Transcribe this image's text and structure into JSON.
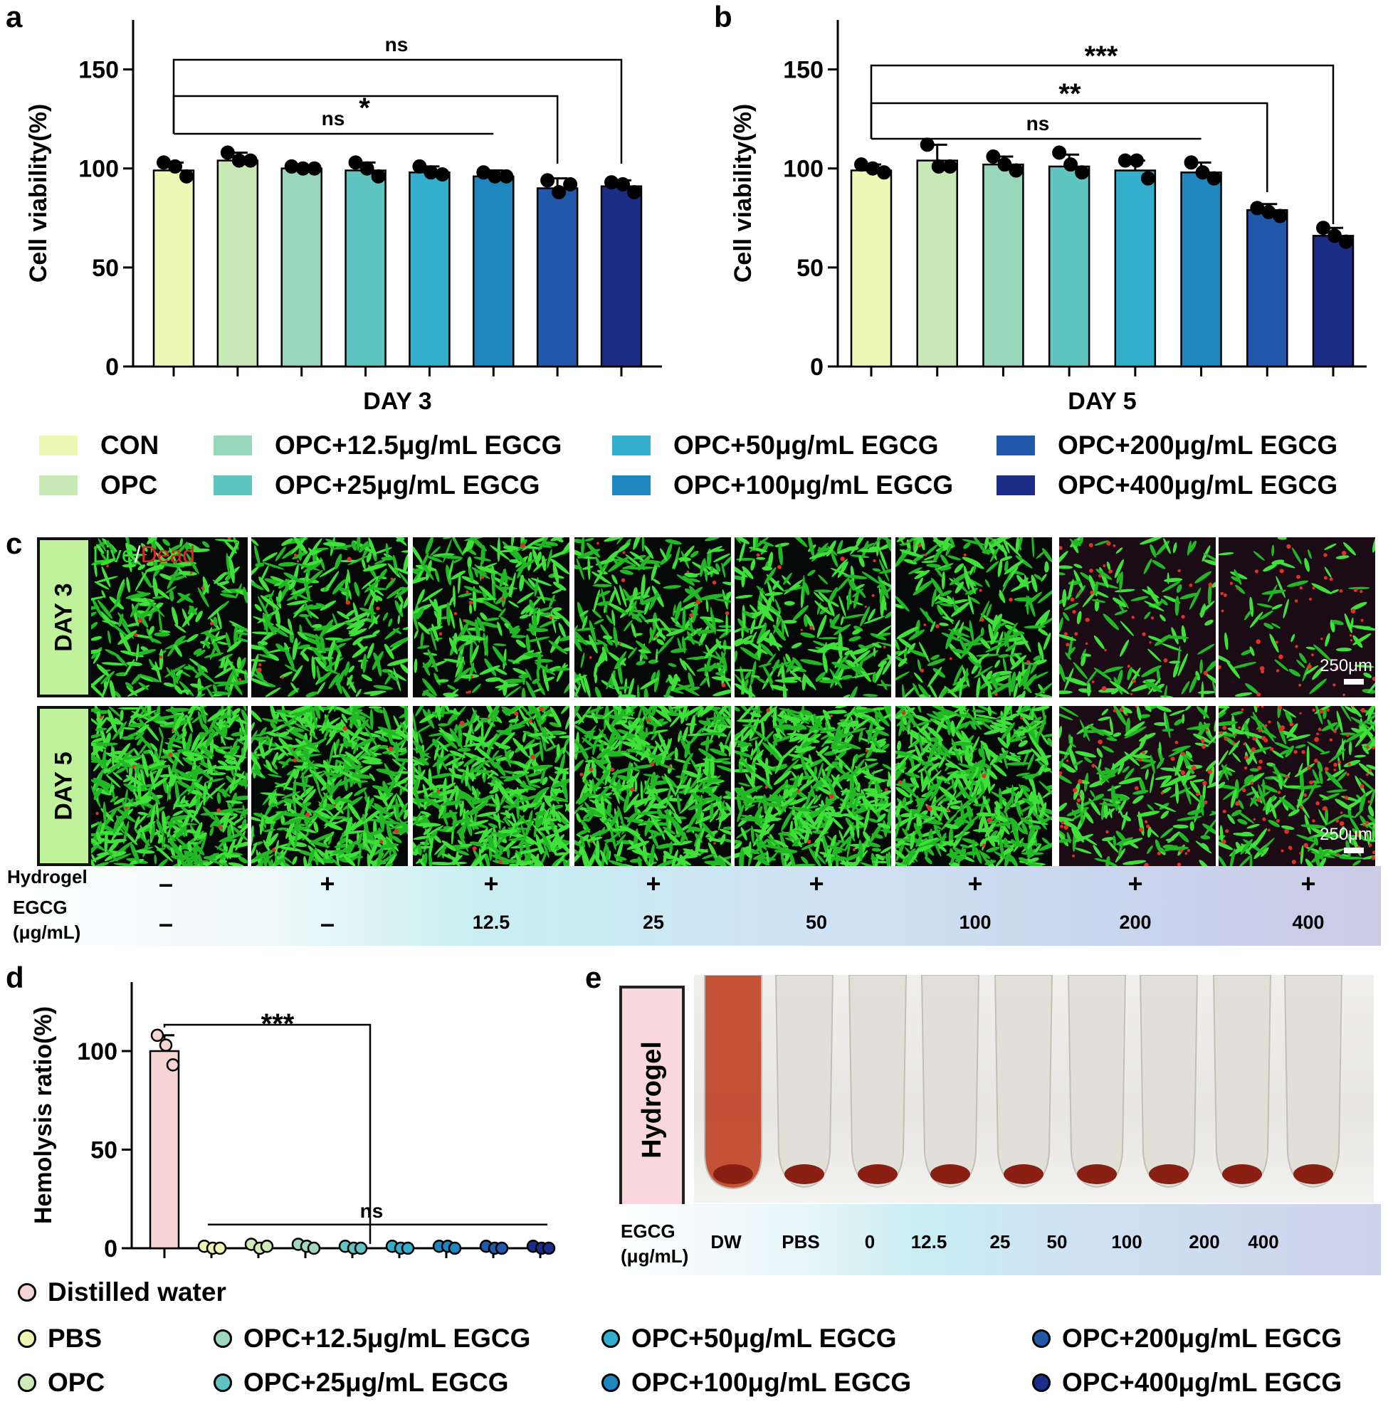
{
  "panels": {
    "a": "a",
    "b": "b",
    "c": "c",
    "d": "d",
    "e": "e"
  },
  "groups": [
    "CON",
    "OPC",
    "OPC+12.5μg/mL EGCG",
    "OPC+25μg/mL EGCG",
    "OPC+50μg/mL EGCG",
    "OPC+100μg/mL EGCG",
    "OPC+200μg/mL EGCG",
    "OPC+400μg/mL EGCG"
  ],
  "colors": [
    "#ecf8b4",
    "#c6e9b5",
    "#99d7bb",
    "#60c4c1",
    "#33aecc",
    "#1f86c0",
    "#2158aa",
    "#1b2d86"
  ],
  "chart_data": [
    {
      "type": "bar",
      "panel": "a",
      "xlabel": "DAY 3",
      "ylabel": "Cell viability(%)",
      "ylim": [
        0,
        175
      ],
      "yticks": [
        0,
        50,
        100,
        150
      ],
      "values": [
        99,
        104,
        100,
        99,
        98,
        96,
        90,
        91
      ],
      "errors": [
        4,
        4,
        1,
        4,
        3,
        3,
        5,
        3
      ],
      "points": [
        [
          103,
          101,
          96
        ],
        [
          108,
          104,
          104
        ],
        [
          101,
          100,
          100
        ],
        [
          103,
          100,
          96
        ],
        [
          101,
          98,
          97
        ],
        [
          98,
          96,
          96
        ],
        [
          94,
          88,
          92
        ],
        [
          93,
          92,
          88
        ]
      ],
      "significance": [
        {
          "label": "ns",
          "from": 0,
          "to": 7
        },
        {
          "label": "*",
          "from": 0,
          "to": 6
        },
        {
          "label": "ns",
          "from": 0,
          "to": 5
        }
      ]
    },
    {
      "type": "bar",
      "panel": "b",
      "xlabel": "DAY 5",
      "ylabel": "Cell viability(%)",
      "ylim": [
        0,
        175
      ],
      "yticks": [
        0,
        50,
        100,
        150
      ],
      "values": [
        99,
        104,
        102,
        101,
        99,
        98,
        79,
        66
      ],
      "errors": [
        3,
        8,
        4,
        6,
        5,
        5,
        3,
        4
      ],
      "points": [
        [
          102,
          100,
          98
        ],
        [
          112,
          101,
          101
        ],
        [
          106,
          102,
          99
        ],
        [
          108,
          102,
          98
        ],
        [
          104,
          104,
          95
        ],
        [
          103,
          98,
          95
        ],
        [
          80,
          78,
          76
        ],
        [
          70,
          66,
          63
        ]
      ],
      "significance": [
        {
          "label": "***",
          "from": 0,
          "to": 7
        },
        {
          "label": "**",
          "from": 0,
          "to": 6
        },
        {
          "label": "ns",
          "from": 0,
          "to": 5
        }
      ]
    },
    {
      "type": "bar",
      "panel": "d",
      "ylabel": "Hemolysis ratio(%)",
      "ylim": [
        0,
        135
      ],
      "yticks": [
        0,
        50,
        100
      ],
      "values": [
        100,
        0.5,
        1,
        1,
        0.5,
        0.5,
        0.8,
        0.3,
        0.5
      ],
      "errors": [
        8,
        0.5,
        1,
        1,
        0.5,
        0.5,
        0.5,
        0.5,
        0.5
      ],
      "points": [
        [
          108,
          103,
          93
        ],
        [
          1,
          0,
          0
        ],
        [
          2,
          0,
          1
        ],
        [
          2,
          1,
          0
        ],
        [
          1,
          0,
          0
        ],
        [
          1,
          0,
          0
        ],
        [
          1,
          1,
          0
        ],
        [
          1,
          0,
          0
        ],
        [
          1,
          0,
          0
        ]
      ],
      "significance": [
        {
          "label": "***",
          "from": 0,
          "to": 4
        },
        {
          "label": "ns",
          "from": 1,
          "to": 8
        }
      ]
    }
  ],
  "legend_ab": {
    "items": [
      "CON",
      "OPC",
      "OPC+12.5μg/mL EGCG",
      "OPC+25μg/mL EGCG",
      "OPC+50μg/mL EGCG",
      "OPC+100μg/mL EGCG",
      "OPC+200μg/mL EGCG",
      "OPC+400μg/mL EGCG"
    ]
  },
  "legend_d": {
    "items": [
      "Distilled water",
      "PBS",
      "OPC",
      "OPC+12.5μg/mL EGCG",
      "OPC+25μg/mL EGCG",
      "OPC+50μg/mL EGCG",
      "OPC+100μg/mL EGCG",
      "OPC+200μg/mL EGCG",
      "OPC+400μg/mL EGCG"
    ],
    "colors": [
      "#f7d4d4",
      "#eef5b2",
      "#cfeab6",
      "#9fd8bc",
      "#62c4c2",
      "#33aecc",
      "#1f86c0",
      "#2158aa",
      "#1b2d86"
    ]
  },
  "panel_c": {
    "overlay": {
      "live": "Live",
      "sep": "/",
      "dead": "Dead"
    },
    "rows": [
      "DAY 3",
      "DAY 5"
    ],
    "scale_bar": "250μm",
    "hydrogel_label": "Hydrogel",
    "egcg_label_1": "EGCG",
    "egcg_label_2": "(μg/mL)",
    "hydrogel": [
      "–",
      "+",
      "+",
      "+",
      "+",
      "+",
      "+",
      "+"
    ],
    "egcg": [
      "–",
      "–",
      "12.5",
      "25",
      "50",
      "100",
      "200",
      "400"
    ],
    "dead_fraction_day3": [
      0.02,
      0.02,
      0.03,
      0.03,
      0.02,
      0.03,
      0.18,
      0.45
    ],
    "dead_fraction_day5": [
      0.01,
      0.01,
      0.01,
      0.01,
      0.01,
      0.01,
      0.15,
      0.35
    ]
  },
  "panel_e": {
    "side_label": "Hydrogel",
    "egcg_label_1": "EGCG",
    "egcg_label_2": "(μg/mL)",
    "tubes": [
      "DW",
      "PBS",
      "0",
      "12.5",
      "25",
      "50",
      "100",
      "200",
      "400"
    ]
  }
}
